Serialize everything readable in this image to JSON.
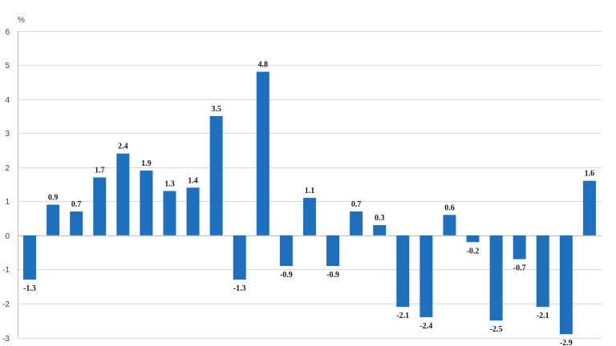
{
  "chart_data": {
    "type": "bar",
    "title": "",
    "xlabel": "",
    "ylabel": "%",
    "ylim": [
      -3,
      6
    ],
    "yticks": [
      6,
      5,
      4,
      3,
      2,
      1,
      0,
      -1,
      -2,
      -3
    ],
    "grid": true,
    "bar_color": "#1f6fbf",
    "values": [
      -1.3,
      0.9,
      0.7,
      1.7,
      2.4,
      1.9,
      1.3,
      1.4,
      3.5,
      -1.3,
      4.8,
      -0.9,
      1.1,
      -0.9,
      0.7,
      0.3,
      -2.1,
      -2.4,
      0.6,
      -0.2,
      -2.5,
      -0.7,
      -2.1,
      -2.9,
      1.6
    ],
    "data_labels": [
      "-1.3",
      "0.9",
      "0.7",
      "1.7",
      "2.4",
      "1.9",
      "1.3",
      "1.4",
      "3.5",
      "-1.3",
      "4.8",
      "-0.9",
      "1.1",
      "-0.9",
      "0.7",
      "0.3",
      "-2.1",
      "-2.4",
      "0.6",
      "-0.2",
      "-2.5",
      "-0.7",
      "-2.1",
      "-2.9",
      "1.6"
    ]
  }
}
